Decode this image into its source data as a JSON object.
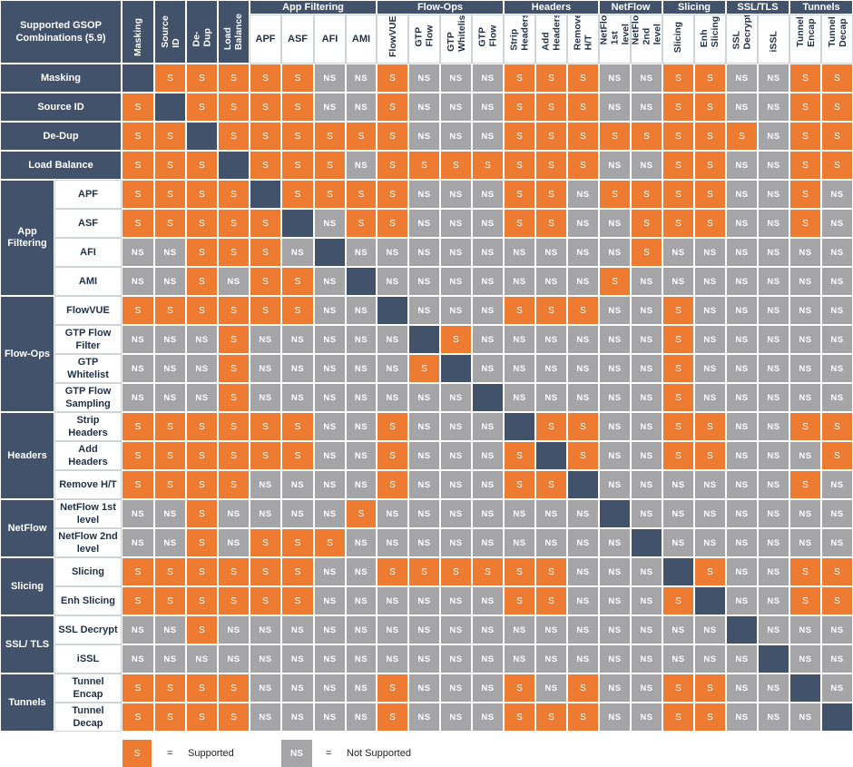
{
  "title": "Supported GSOP Combinations (5.9)",
  "colors": {
    "supported": "#ed7b32",
    "not_supported": "#a5a5a7",
    "header": "#42526a",
    "diagonal": "#42526a"
  },
  "groups": [
    {
      "label": "App Filtering",
      "span": [
        4,
        7
      ]
    },
    {
      "label": "Flow-Ops",
      "span": [
        8,
        11
      ]
    },
    {
      "label": "Headers",
      "span": [
        12,
        14
      ]
    },
    {
      "label": "NetFlow",
      "span": [
        15,
        16
      ]
    },
    {
      "label": "Slicing",
      "span": [
        17,
        18
      ]
    },
    {
      "label": "SSL/TLS",
      "span": [
        19,
        20
      ]
    },
    {
      "label": "Tunnels",
      "span": [
        21,
        22
      ]
    }
  ],
  "columns": [
    {
      "label": "Masking",
      "vertical": true
    },
    {
      "label": "Source ID",
      "vertical": true
    },
    {
      "label": "De-Dup",
      "vertical": true
    },
    {
      "label": "Load\nBalance",
      "vertical": true
    },
    {
      "label": "APF"
    },
    {
      "label": "ASF"
    },
    {
      "label": "AFI"
    },
    {
      "label": "AMI"
    },
    {
      "label": "FlowVUE",
      "vertical": true
    },
    {
      "label": "GTP\nFlow",
      "vertical": true
    },
    {
      "label": "GTP\nWhitelist",
      "vertical": true
    },
    {
      "label": "GTP\nFlow",
      "vertical": true
    },
    {
      "label": "Strip\nHeaders",
      "vertical": true
    },
    {
      "label": "Add\nHeaders",
      "vertical": true
    },
    {
      "label": "Remove\nH/T",
      "vertical": true
    },
    {
      "label": "NetFlow\n1st level",
      "vertical": true
    },
    {
      "label": "NetFlow\n2nd level",
      "vertical": true
    },
    {
      "label": "Slicing",
      "vertical": true
    },
    {
      "label": "Enh\nSlicing",
      "vertical": true
    },
    {
      "label": "SSL\nDecrypt",
      "vertical": true
    },
    {
      "label": "iSSL",
      "vertical": true
    },
    {
      "label": "Tunnel\nEncap",
      "vertical": true
    },
    {
      "label": "Tunnel\nDecap",
      "vertical": true
    }
  ],
  "row_groups": [
    {
      "label": "App\nFiltering",
      "span": [
        4,
        7
      ]
    },
    {
      "label": "Flow-Ops",
      "span": [
        8,
        11
      ]
    },
    {
      "label": "Headers",
      "span": [
        12,
        14
      ]
    },
    {
      "label": "NetFlow",
      "span": [
        15,
        16
      ]
    },
    {
      "label": "Slicing",
      "span": [
        17,
        18
      ]
    },
    {
      "label": "SSL/ TLS",
      "span": [
        19,
        20
      ]
    },
    {
      "label": "Tunnels",
      "span": [
        21,
        22
      ]
    }
  ],
  "rows": [
    {
      "label": "Masking",
      "full": true,
      "cells": "X S S S S S N N S N N N S S S N N S S N N S S"
    },
    {
      "label": "Source ID",
      "full": true,
      "cells": "S X S S S S N N S N N N S S S N N S S N N S S"
    },
    {
      "label": "De-Dup",
      "full": true,
      "cells": "S S X S S S S S S N N N S S S S S S S S N S S"
    },
    {
      "label": "Load Balance",
      "full": true,
      "cells": "S S S X S S S N S S S S S S S N N S S N N S S"
    },
    {
      "label": "APF",
      "cells": "S S S S X S S S S N N N S S N S S S S N N S N"
    },
    {
      "label": "ASF",
      "cells": "S S S S S X N S S N N N S S N N S S S N N S N"
    },
    {
      "label": "AFI",
      "cells": "N N S S S N X N N N N N N N N N S N N N N N N"
    },
    {
      "label": "AMI",
      "cells": "N N S N S S N X N N N N N N N S N N N N N N N"
    },
    {
      "label": "FlowVUE",
      "cells": "S S S S S S N N X N N N S S S N N S N N N N N"
    },
    {
      "label": "GTP Flow\nFilter",
      "cells": "N N N S N N N N N X S N N N N N N S N N N N N"
    },
    {
      "label": "GTP\nWhitelist",
      "cells": "N N N S N N N N N S X N N N N N N S N N N N N"
    },
    {
      "label": "GTP Flow\nSampling",
      "cells": "N N N S N N N N N N N X N N N N N S N N N N N"
    },
    {
      "label": "Strip\nHeaders",
      "cells": "S S S S S S N N S N N N X S S N N S S N N S S"
    },
    {
      "label": "Add\nHeaders",
      "cells": "S S S S S S N N S N N N S X S N N S S N N N S"
    },
    {
      "label": "Remove H/T",
      "cells": "S S S S N N N N S N N N S S X N N N N N N S N"
    },
    {
      "label": "NetFlow 1st\nlevel",
      "cells": "N N S N N N N S N N N N N N N X N N N N N N N"
    },
    {
      "label": "NetFlow 2nd\nlevel",
      "cells": "N N S N S S S N N N N N N N N N X N N N N N N"
    },
    {
      "label": "Slicing",
      "cells": "S S S S S S N N S S S S S S N N N X S N N S S"
    },
    {
      "label": "Enh Slicing",
      "cells": "S S S S S S N N N N N N S S N N N S X N N S S"
    },
    {
      "label": "SSL Decrypt",
      "cells": "N N S N N N N N N N N N N N N N N N N X N N N"
    },
    {
      "label": "iSSL",
      "cells": "N N N N N N N N N N N N N N N N N N N N X N N"
    },
    {
      "label": "Tunnel\nEncap",
      "cells": "S S S S N N N N S N N N S N S N N S S N N X N"
    },
    {
      "label": "Tunnel\nDecap",
      "cells": "S S S S N N N N S N N N S S S N N S S N N N X"
    }
  ],
  "cell_text": {
    "S": "S",
    "N": "NS"
  },
  "legend": {
    "supported_mark": "S",
    "supported_eq": "=",
    "supported_label": "Supported",
    "not_supported_mark": "NS",
    "not_supported_eq": "=",
    "not_supported_label": "Not Supported"
  }
}
